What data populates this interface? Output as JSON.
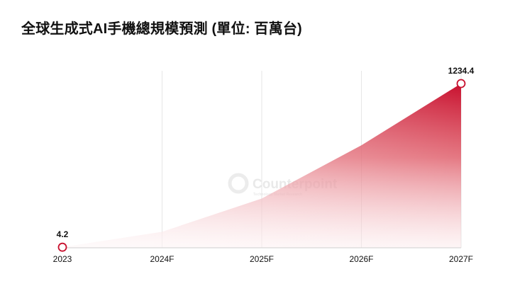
{
  "chart_data": {
    "type": "area",
    "title": "全球生成式AI手機總規模預測 (單位: 百萬台)",
    "categories": [
      "2023",
      "2024F",
      "2025F",
      "2026F",
      "2027F"
    ],
    "series": [
      {
        "name": "生成式AI手機",
        "values": [
          4.2,
          120,
          370,
          770,
          1234.4
        ]
      }
    ],
    "labeled_points": [
      {
        "category": "2023",
        "value": 4.2,
        "label": "4.2"
      },
      {
        "category": "2027F",
        "value": 1234.4,
        "label": "1234.4"
      }
    ],
    "ylim": [
      0,
      1234.4
    ],
    "xlabel": "",
    "ylabel": "",
    "grid": "vertical",
    "colors": {
      "accent": "#c8102e",
      "fill_light": "#fdecec",
      "grid": "#e6e6e6",
      "axis": "#cfcfcf",
      "text": "#111111"
    }
  },
  "watermark": {
    "brand": "Counterpoint",
    "tagline": "Technology Market Research"
  }
}
